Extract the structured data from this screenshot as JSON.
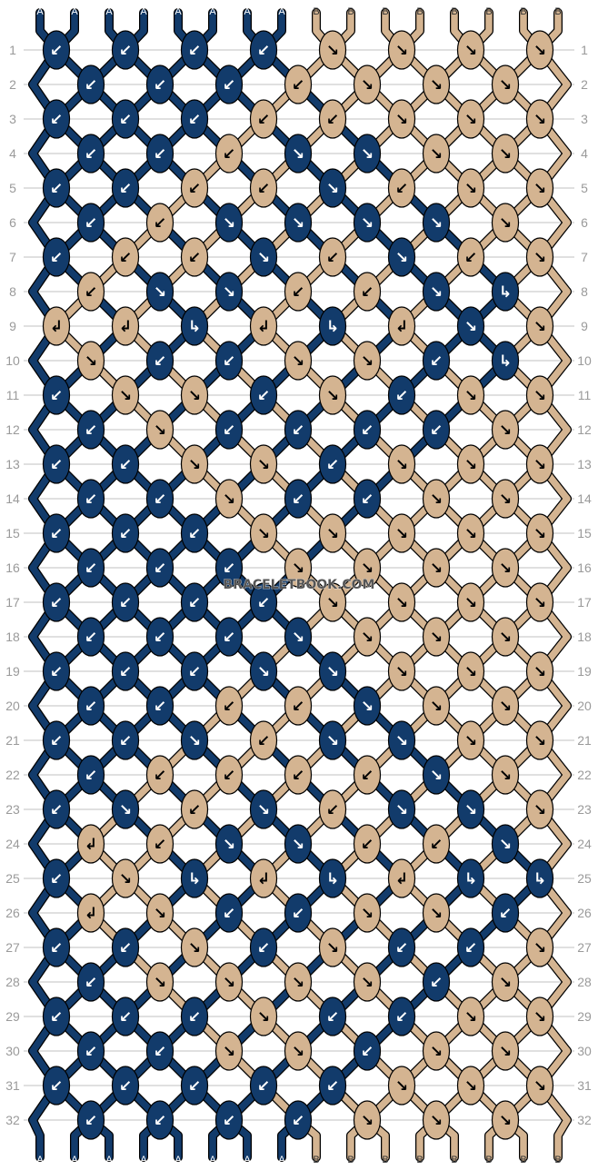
{
  "watermark": "BRACELETBOOK.COM",
  "colors": {
    "A": "#123b6b",
    "B": "#d4b491",
    "outline": "#000000",
    "gridline": "#c0c0c0"
  },
  "strands_top": [
    "A",
    "A",
    "A",
    "A",
    "A",
    "A",
    "A",
    "A",
    "B",
    "B",
    "B",
    "B",
    "B",
    "B",
    "B",
    "B"
  ],
  "strands_bottom": [
    "A",
    "A",
    "A",
    "A",
    "A",
    "A",
    "A",
    "A",
    "B",
    "B",
    "B",
    "B",
    "B",
    "B",
    "B",
    "B"
  ],
  "knot_legend": {
    "b": "backward-arrow-icon",
    "f": "forward-arrow-icon",
    "bf": "backward-forward-arrow-icon",
    "fb": "forward-backward-arrow-icon"
  },
  "row_numbers": [
    "1",
    "2",
    "3",
    "4",
    "5",
    "6",
    "7",
    "8",
    "9",
    "10",
    "11",
    "12",
    "13",
    "14",
    "15",
    "16",
    "17",
    "18",
    "19",
    "20",
    "21",
    "22",
    "23",
    "24",
    "25",
    "26",
    "27",
    "28",
    "29",
    "30",
    "31",
    "32"
  ],
  "rows": [
    "Ab Ab Ab Ab Bf Bf Bf Bf",
    "Ab Ab Ab Bb Bf Bf Bf",
    "Ab Ab Ab Bb Bb Bf Bf Bf",
    "Ab Ab Bb Af Af Bf Bf",
    "Ab Ab Bb Bb Af Bb Bf Bf",
    "Ab Bb Af Af Af Af Bf",
    "Ab Bb Bb Af Bb Af Bb Bf",
    "Bb Af Af Bb Bb Af Afb",
    "Bbf Bbf Afb Bbf Afb Bbf Af Bf",
    "Bf Ab Ab Bf Bf Ab Afb",
    "Ab Bf Bf Ab Bf Ab Bf Bf",
    "Ab Bf Ab Ab Ab Ab Bf",
    "Ab Ab Bf Bf Ab Bf Bf Bf",
    "Ab Ab Bf Ab Ab Bf Bf",
    "Ab Ab Ab Bf Bf Bf Bf Bf",
    "Ab Ab Ab Bf Bf Bf Bf",
    "Ab Ab Ab Ab Bf Bf Bf Bf",
    "Ab Ab Ab Af Bf Bf Bf",
    "Ab Ab Ab Af Af Bf Bf Bf",
    "Ab Ab Bb Bb Af Bf Bf",
    "Ab Ab Af Bb Af Af Bf Bf",
    "Ab Bb Bb Bb Bb Af Bf",
    "Ab Af Bb Af Bb Af Af Bf",
    "Bbf Bb Af Af Bb Bb Af",
    "Ab Bf Afb Bbf Afb Bbf Afb Afb",
    "Bbf Bf Ab Ab Bf Bf Ab",
    "Ab Ab Bf Ab Bf Ab Ab Bf",
    "Ab Bf Bf Bf Bf Ab Bf",
    "Ab Ab Ab Bf Ab Ab Bf Bf",
    "Ab Ab Bf Bf Ab Bf Bf",
    "Ab Ab Ab Ab Ab Bf Bf Bf",
    "Ab Ab Ab Ab Bf Bf Bf"
  ]
}
